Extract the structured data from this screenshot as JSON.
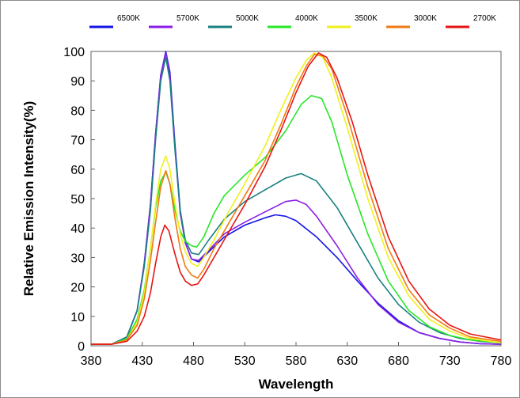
{
  "chart_data": {
    "type": "line",
    "title": "",
    "xlabel": "Wavelength",
    "ylabel": "Relative Emission Intensity(%)",
    "xlim": [
      380,
      780
    ],
    "ylim": [
      0,
      100
    ],
    "x_ticks": [
      "380",
      "430",
      "480",
      "530",
      "580",
      "630",
      "680",
      "730",
      "780"
    ],
    "y_ticks": [
      "0",
      "10",
      "20",
      "30",
      "40",
      "50",
      "60",
      "70",
      "80",
      "90",
      "100"
    ],
    "grid": false,
    "legend_position": "top",
    "series": [
      {
        "name": "6500K",
        "color": "#1414e6",
        "points": [
          [
            380,
            0.5
          ],
          [
            400,
            0.5
          ],
          [
            415,
            3
          ],
          [
            425,
            12
          ],
          [
            432,
            28
          ],
          [
            438,
            48
          ],
          [
            443,
            72
          ],
          [
            448,
            92
          ],
          [
            453,
            100
          ],
          [
            457,
            93
          ],
          [
            462,
            68
          ],
          [
            467,
            46
          ],
          [
            472,
            35
          ],
          [
            478,
            29.5
          ],
          [
            485,
            28.5
          ],
          [
            495,
            32
          ],
          [
            510,
            37
          ],
          [
            530,
            41
          ],
          [
            550,
            43.5
          ],
          [
            560,
            44.5
          ],
          [
            570,
            44
          ],
          [
            580,
            42.5
          ],
          [
            600,
            37
          ],
          [
            620,
            30
          ],
          [
            640,
            22
          ],
          [
            660,
            14.5
          ],
          [
            680,
            8.5
          ],
          [
            700,
            4.5
          ],
          [
            720,
            2.5
          ],
          [
            740,
            1.3
          ],
          [
            760,
            0.7
          ],
          [
            780,
            0.5
          ]
        ]
      },
      {
        "name": "5700K",
        "color": "#8b1ee6",
        "points": [
          [
            380,
            0.5
          ],
          [
            400,
            0.5
          ],
          [
            415,
            3
          ],
          [
            425,
            12
          ],
          [
            432,
            28
          ],
          [
            438,
            48
          ],
          [
            443,
            72
          ],
          [
            448,
            92
          ],
          [
            453,
            99.5
          ],
          [
            457,
            92
          ],
          [
            462,
            67
          ],
          [
            467,
            45
          ],
          [
            472,
            35
          ],
          [
            478,
            29.5
          ],
          [
            485,
            29
          ],
          [
            495,
            32.5
          ],
          [
            510,
            38
          ],
          [
            530,
            42
          ],
          [
            550,
            45.5
          ],
          [
            570,
            49
          ],
          [
            580,
            49.5
          ],
          [
            590,
            48
          ],
          [
            600,
            44
          ],
          [
            620,
            34
          ],
          [
            640,
            23
          ],
          [
            660,
            14
          ],
          [
            680,
            8
          ],
          [
            700,
            4.5
          ],
          [
            720,
            2.5
          ],
          [
            740,
            1.3
          ],
          [
            760,
            0.7
          ],
          [
            780,
            0.5
          ]
        ]
      },
      {
        "name": "5000K",
        "color": "#1a8080",
        "points": [
          [
            380,
            0.5
          ],
          [
            400,
            0.5
          ],
          [
            415,
            3
          ],
          [
            425,
            12
          ],
          [
            432,
            27
          ],
          [
            438,
            46
          ],
          [
            443,
            70
          ],
          [
            448,
            90
          ],
          [
            453,
            98
          ],
          [
            457,
            90
          ],
          [
            462,
            66
          ],
          [
            467,
            46
          ],
          [
            472,
            36
          ],
          [
            478,
            31.5
          ],
          [
            485,
            31
          ],
          [
            495,
            36
          ],
          [
            510,
            43
          ],
          [
            530,
            49
          ],
          [
            550,
            53
          ],
          [
            570,
            57
          ],
          [
            585,
            58.5
          ],
          [
            600,
            56
          ],
          [
            620,
            47
          ],
          [
            640,
            35
          ],
          [
            660,
            23
          ],
          [
            680,
            14
          ],
          [
            700,
            8
          ],
          [
            720,
            4.5
          ],
          [
            740,
            2.5
          ],
          [
            760,
            1.5
          ],
          [
            780,
            1
          ]
        ]
      },
      {
        "name": "4000K",
        "color": "#28e628",
        "points": [
          [
            380,
            0.5
          ],
          [
            400,
            0.5
          ],
          [
            415,
            2.5
          ],
          [
            425,
            9
          ],
          [
            432,
            19
          ],
          [
            438,
            33
          ],
          [
            443,
            47
          ],
          [
            448,
            56
          ],
          [
            453,
            59
          ],
          [
            457,
            55
          ],
          [
            462,
            46
          ],
          [
            467,
            39
          ],
          [
            472,
            35.5
          ],
          [
            478,
            34
          ],
          [
            483,
            33.5
          ],
          [
            490,
            37
          ],
          [
            500,
            45
          ],
          [
            510,
            51
          ],
          [
            530,
            58
          ],
          [
            550,
            64
          ],
          [
            570,
            73
          ],
          [
            585,
            82
          ],
          [
            595,
            85
          ],
          [
            605,
            84
          ],
          [
            615,
            76
          ],
          [
            630,
            58
          ],
          [
            650,
            38
          ],
          [
            670,
            22
          ],
          [
            690,
            12
          ],
          [
            710,
            6.5
          ],
          [
            730,
            3.5
          ],
          [
            750,
            2
          ],
          [
            780,
            1
          ]
        ]
      },
      {
        "name": "3500K",
        "color": "#f0f01e",
        "points": [
          [
            380,
            0.5
          ],
          [
            400,
            0.5
          ],
          [
            415,
            2
          ],
          [
            425,
            8
          ],
          [
            432,
            18
          ],
          [
            438,
            33
          ],
          [
            443,
            48
          ],
          [
            448,
            60
          ],
          [
            453,
            64.5
          ],
          [
            457,
            60
          ],
          [
            462,
            48
          ],
          [
            467,
            38
          ],
          [
            472,
            32
          ],
          [
            478,
            28
          ],
          [
            484,
            27
          ],
          [
            490,
            30
          ],
          [
            500,
            36
          ],
          [
            515,
            46
          ],
          [
            530,
            55
          ],
          [
            550,
            68
          ],
          [
            565,
            80
          ],
          [
            580,
            91
          ],
          [
            590,
            97
          ],
          [
            598,
            99.5
          ],
          [
            606,
            98
          ],
          [
            615,
            91
          ],
          [
            630,
            74
          ],
          [
            650,
            50
          ],
          [
            670,
            30
          ],
          [
            690,
            17
          ],
          [
            710,
            9
          ],
          [
            730,
            5
          ],
          [
            750,
            2.5
          ],
          [
            780,
            1
          ]
        ]
      },
      {
        "name": "3000K",
        "color": "#f07a14",
        "points": [
          [
            380,
            0.5
          ],
          [
            400,
            0.5
          ],
          [
            415,
            2
          ],
          [
            425,
            7
          ],
          [
            432,
            16
          ],
          [
            438,
            29
          ],
          [
            443,
            42
          ],
          [
            448,
            54
          ],
          [
            453,
            59.5
          ],
          [
            457,
            55
          ],
          [
            462,
            43
          ],
          [
            467,
            33
          ],
          [
            472,
            27
          ],
          [
            478,
            24
          ],
          [
            484,
            23
          ],
          [
            490,
            26
          ],
          [
            500,
            33
          ],
          [
            515,
            42
          ],
          [
            530,
            51
          ],
          [
            550,
            63
          ],
          [
            565,
            75
          ],
          [
            580,
            88
          ],
          [
            590,
            95
          ],
          [
            598,
            99
          ],
          [
            606,
            98.5
          ],
          [
            615,
            94
          ],
          [
            630,
            78
          ],
          [
            650,
            54
          ],
          [
            670,
            33
          ],
          [
            690,
            19
          ],
          [
            710,
            10.5
          ],
          [
            730,
            6
          ],
          [
            750,
            3
          ],
          [
            780,
            1.5
          ]
        ]
      },
      {
        "name": "2700K",
        "color": "#e61414",
        "points": [
          [
            380,
            0.5
          ],
          [
            400,
            0.5
          ],
          [
            415,
            1.5
          ],
          [
            425,
            5
          ],
          [
            432,
            10
          ],
          [
            438,
            18
          ],
          [
            443,
            28
          ],
          [
            448,
            37
          ],
          [
            452,
            41
          ],
          [
            456,
            39
          ],
          [
            462,
            31
          ],
          [
            467,
            25
          ],
          [
            472,
            22
          ],
          [
            478,
            20.5
          ],
          [
            484,
            21
          ],
          [
            490,
            24
          ],
          [
            500,
            30
          ],
          [
            515,
            39
          ],
          [
            530,
            48
          ],
          [
            550,
            61
          ],
          [
            565,
            73
          ],
          [
            580,
            86
          ],
          [
            592,
            95
          ],
          [
            602,
            99.5
          ],
          [
            610,
            98
          ],
          [
            620,
            91
          ],
          [
            635,
            76
          ],
          [
            650,
            58
          ],
          [
            670,
            37
          ],
          [
            690,
            22
          ],
          [
            710,
            12.5
          ],
          [
            730,
            7
          ],
          [
            750,
            4
          ],
          [
            780,
            2
          ]
        ]
      }
    ]
  }
}
